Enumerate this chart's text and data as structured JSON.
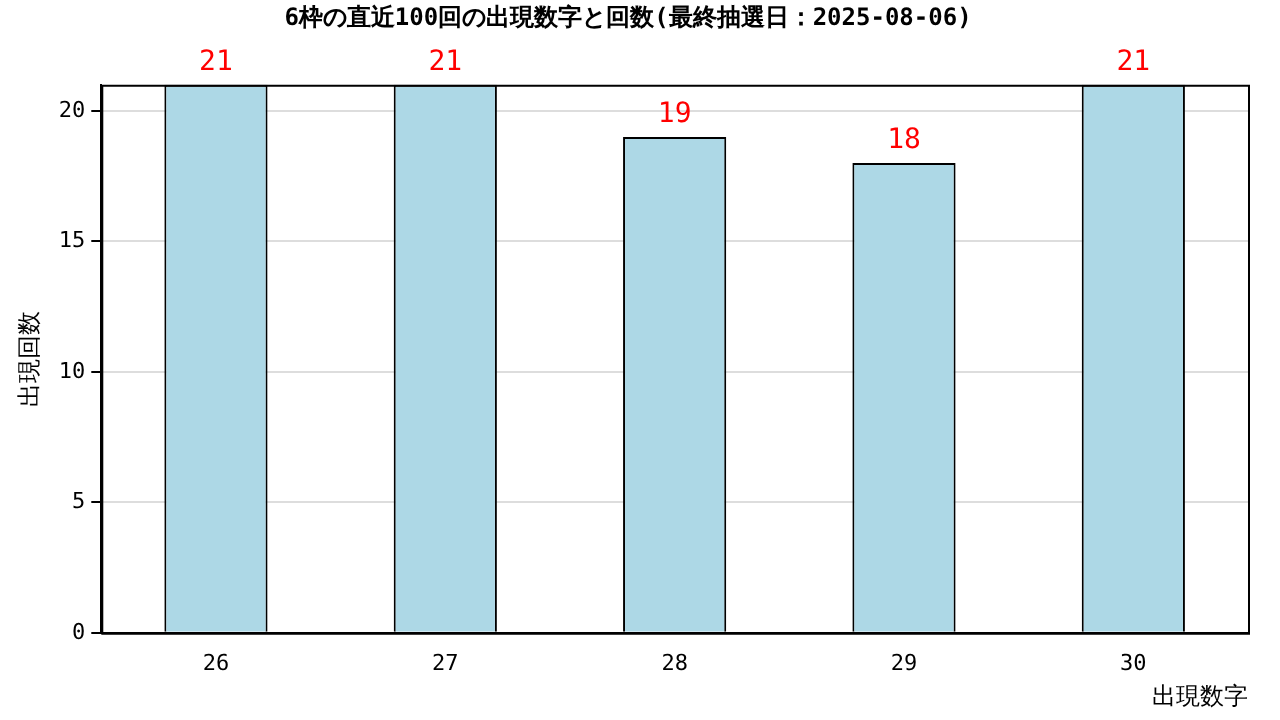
{
  "chart_data": {
    "type": "bar",
    "title": "6枠の直近100回の出現数字と回数(最終抽選日：2025-08-06)",
    "xlabel": "出現数字",
    "ylabel": "出現回数",
    "categories": [
      "26",
      "27",
      "28",
      "29",
      "30"
    ],
    "values": [
      21,
      21,
      19,
      18,
      21
    ],
    "color": "#add8e6",
    "ylim": [
      0,
      21
    ],
    "yticks": [
      0,
      5,
      10,
      15,
      20
    ],
    "grid": "y",
    "data_labels": true,
    "legend": false
  }
}
